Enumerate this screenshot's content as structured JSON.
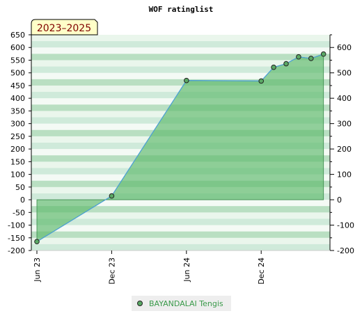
{
  "chart_data": {
    "type": "area",
    "title": "WOF ratinglist",
    "period_badge": "2023–2025",
    "xlabel": "",
    "ylabel": "",
    "x_tick_labels": [
      {
        "label": "Jun 23",
        "month": 0
      },
      {
        "label": "Dec 23",
        "month": 6
      },
      {
        "label": "Jun 24",
        "month": 12
      },
      {
        "label": "Dec 24",
        "month": 18
      }
    ],
    "xlim_months": [
      0,
      23.4
    ],
    "ylim": [
      -200,
      650
    ],
    "y_left_ticks": [
      650,
      600,
      550,
      500,
      450,
      400,
      350,
      300,
      250,
      200,
      150,
      100,
      50,
      0,
      -50,
      -100,
      -150,
      -200
    ],
    "y_right_ticks": [
      600,
      500,
      400,
      300,
      200,
      100,
      0,
      -100,
      -200
    ],
    "series": [
      {
        "name": "BAYANDALAI Tengis",
        "points": [
          {
            "month": 0,
            "value": -165
          },
          {
            "month": 6,
            "value": 15
          },
          {
            "month": 12,
            "value": 470
          },
          {
            "month": 18,
            "value": 468
          },
          {
            "month": 19,
            "value": 522
          },
          {
            "month": 20,
            "value": 536
          },
          {
            "month": 21,
            "value": 563
          },
          {
            "month": 22,
            "value": 557
          },
          {
            "month": 23,
            "value": 574
          }
        ]
      }
    ],
    "grid": true,
    "legend_position": "bottom-center"
  },
  "colors": {
    "area_fill": "#5cb86a",
    "line": "#4a9fd8",
    "marker_fill": "#5aa865",
    "marker_stroke": "#222222",
    "legend_text": "#3a9a4a",
    "badge_bg": "#ffffc8",
    "badge_text": "#800000"
  }
}
